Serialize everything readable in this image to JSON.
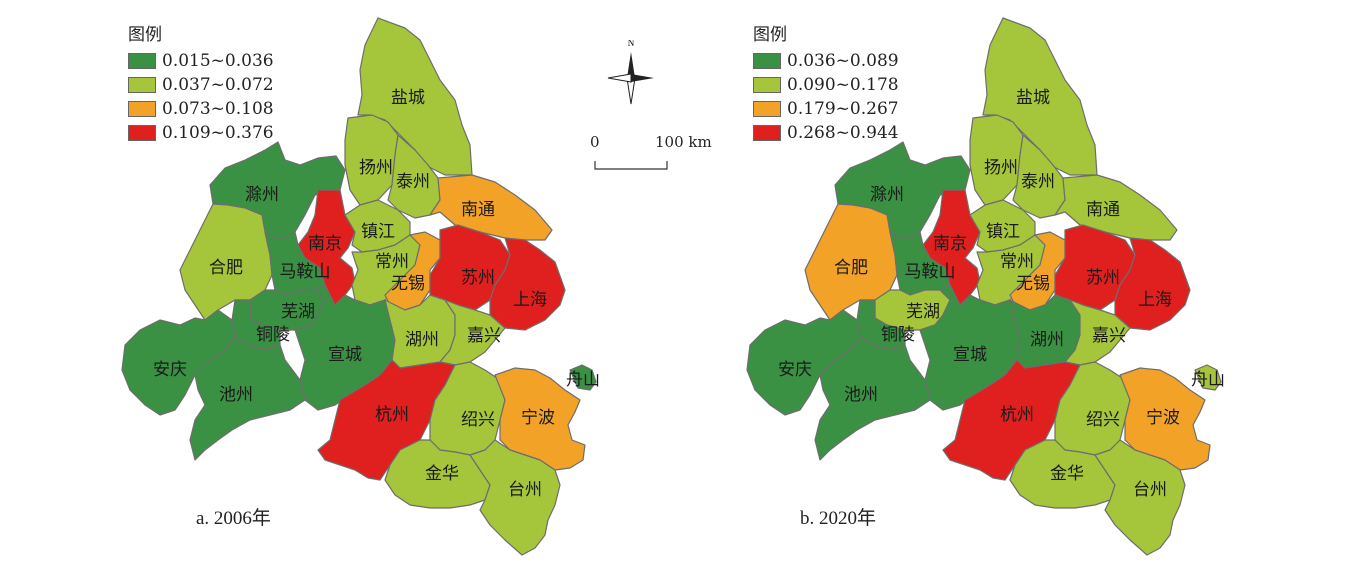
{
  "colors": {
    "c1": "#3a9143",
    "c2": "#a5c63b",
    "c3": "#f2a227",
    "c4": "#e01f1f"
  },
  "north_label": "N",
  "scale": {
    "zero": "0",
    "end": "100 km"
  },
  "maps": [
    {
      "caption": "a. 2006年",
      "legend_title": "图例",
      "legend": [
        {
          "label": "0.015~0.036",
          "class": "c1"
        },
        {
          "label": "0.037~0.072",
          "class": "c2"
        },
        {
          "label": "0.073~0.108",
          "class": "c3"
        },
        {
          "label": "0.109~0.376",
          "class": "c4"
        }
      ],
      "regions": {
        "yancheng": {
          "name": "盐城",
          "class": "c2"
        },
        "yangzhou": {
          "name": "扬州",
          "class": "c2"
        },
        "taizhou_js": {
          "name": "泰州",
          "class": "c2"
        },
        "nantong": {
          "name": "南通",
          "class": "c3"
        },
        "chuzhou": {
          "name": "滁州",
          "class": "c1"
        },
        "nanjing": {
          "name": "南京",
          "class": "c4"
        },
        "zhenjiang": {
          "name": "镇江",
          "class": "c2"
        },
        "changzhou": {
          "name": "常州",
          "class": "c2"
        },
        "wuxi": {
          "name": "无锡",
          "class": "c3"
        },
        "suzhou": {
          "name": "苏州",
          "class": "c4"
        },
        "shanghai": {
          "name": "上海",
          "class": "c4"
        },
        "hefei": {
          "name": "合肥",
          "class": "c2"
        },
        "maanshan": {
          "name": "马鞍山",
          "class": "c1"
        },
        "wuhu": {
          "name": "芜湖",
          "class": "c1"
        },
        "tongling": {
          "name": "铜陵",
          "class": "c1"
        },
        "xuancheng": {
          "name": "宣城",
          "class": "c1"
        },
        "huzhou": {
          "name": "湖州",
          "class": "c2"
        },
        "jiaxing": {
          "name": "嘉兴",
          "class": "c2"
        },
        "anqing": {
          "name": "安庆",
          "class": "c1"
        },
        "chizhou": {
          "name": "池州",
          "class": "c1"
        },
        "hangzhou": {
          "name": "杭州",
          "class": "c4"
        },
        "shaoxing": {
          "name": "绍兴",
          "class": "c2"
        },
        "ningbo": {
          "name": "宁波",
          "class": "c3"
        },
        "zhoushan": {
          "name": "舟山",
          "class": "c1"
        },
        "jinhua": {
          "name": "金华",
          "class": "c2"
        },
        "taizhou_zj": {
          "name": "台州",
          "class": "c2"
        }
      }
    },
    {
      "caption": "b. 2020年",
      "legend_title": "图例",
      "legend": [
        {
          "label": "0.036~0.089",
          "class": "c1"
        },
        {
          "label": "0.090~0.178",
          "class": "c2"
        },
        {
          "label": "0.179~0.267",
          "class": "c3"
        },
        {
          "label": "0.268~0.944",
          "class": "c4"
        }
      ],
      "regions": {
        "yancheng": {
          "name": "盐城",
          "class": "c2"
        },
        "yangzhou": {
          "name": "扬州",
          "class": "c2"
        },
        "taizhou_js": {
          "name": "泰州",
          "class": "c2"
        },
        "nantong": {
          "name": "南通",
          "class": "c2"
        },
        "chuzhou": {
          "name": "滁州",
          "class": "c1"
        },
        "nanjing": {
          "name": "南京",
          "class": "c4"
        },
        "zhenjiang": {
          "name": "镇江",
          "class": "c2"
        },
        "changzhou": {
          "name": "常州",
          "class": "c2"
        },
        "wuxi": {
          "name": "无锡",
          "class": "c3"
        },
        "suzhou": {
          "name": "苏州",
          "class": "c4"
        },
        "shanghai": {
          "name": "上海",
          "class": "c4"
        },
        "hefei": {
          "name": "合肥",
          "class": "c3"
        },
        "maanshan": {
          "name": "马鞍山",
          "class": "c1"
        },
        "wuhu": {
          "name": "芜湖",
          "class": "c2"
        },
        "tongling": {
          "name": "铜陵",
          "class": "c1"
        },
        "xuancheng": {
          "name": "宣城",
          "class": "c1"
        },
        "huzhou": {
          "name": "湖州",
          "class": "c1"
        },
        "jiaxing": {
          "name": "嘉兴",
          "class": "c2"
        },
        "anqing": {
          "name": "安庆",
          "class": "c1"
        },
        "chizhou": {
          "name": "池州",
          "class": "c1"
        },
        "hangzhou": {
          "name": "杭州",
          "class": "c4"
        },
        "shaoxing": {
          "name": "绍兴",
          "class": "c2"
        },
        "ningbo": {
          "name": "宁波",
          "class": "c3"
        },
        "zhoushan": {
          "name": "舟山",
          "class": "c2"
        },
        "jinhua": {
          "name": "金华",
          "class": "c2"
        },
        "taizhou_zj": {
          "name": "台州",
          "class": "c2"
        }
      }
    }
  ]
}
